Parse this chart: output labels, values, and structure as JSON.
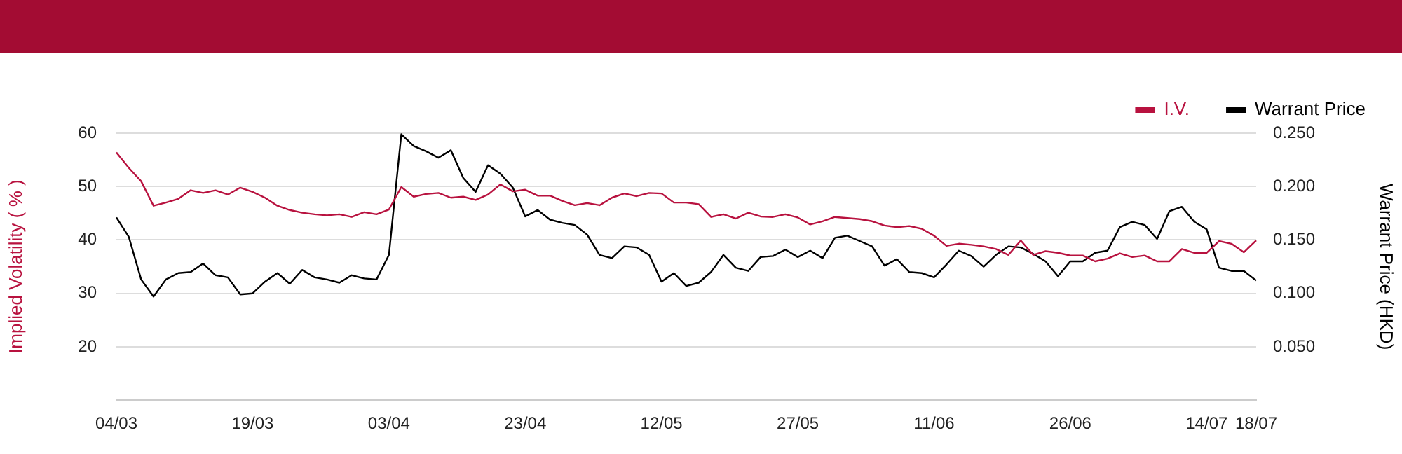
{
  "chart_data": {
    "type": "line",
    "categories": [
      "04/03",
      null,
      null,
      null,
      null,
      null,
      null,
      null,
      null,
      null,
      null,
      "19/03",
      null,
      null,
      null,
      null,
      null,
      null,
      null,
      null,
      null,
      null,
      "03/04",
      null,
      null,
      null,
      null,
      null,
      null,
      null,
      null,
      null,
      null,
      "23/04",
      null,
      null,
      null,
      null,
      null,
      null,
      null,
      null,
      null,
      null,
      "12/05",
      null,
      null,
      null,
      null,
      null,
      null,
      null,
      null,
      null,
      null,
      "27/05",
      null,
      null,
      null,
      null,
      null,
      null,
      null,
      null,
      null,
      null,
      "11/06",
      null,
      null,
      null,
      null,
      null,
      null,
      null,
      null,
      null,
      null,
      "26/06",
      null,
      null,
      null,
      null,
      null,
      null,
      null,
      null,
      null,
      null,
      "14/07",
      null,
      null,
      null,
      "18/07"
    ],
    "series": [
      {
        "name": "I.V.",
        "color": "#b8123f",
        "values": [
          56.4,
          53.5,
          51.0,
          46.4,
          47.0,
          47.7,
          49.3,
          48.8,
          49.3,
          48.5,
          49.8,
          49.0,
          47.9,
          46.4,
          45.6,
          45.1,
          44.8,
          44.6,
          44.8,
          44.3,
          45.2,
          44.8,
          45.7,
          49.9,
          48.1,
          48.6,
          48.8,
          47.9,
          48.1,
          47.5,
          48.5,
          50.4,
          49.1,
          49.4,
          48.3,
          48.3,
          47.3,
          46.5,
          46.9,
          46.5,
          47.9,
          48.7,
          48.2,
          48.8,
          48.7,
          47.0,
          47.0,
          46.7,
          44.3,
          44.8,
          44.0,
          45.1,
          44.4,
          44.3,
          44.8,
          44.2,
          42.9,
          43.5,
          44.3,
          44.1,
          43.9,
          43.5,
          42.7,
          42.4,
          42.6,
          42.1,
          40.8,
          38.9,
          39.3,
          39.1,
          38.8,
          38.3,
          37.2,
          39.9,
          37.2,
          37.9,
          37.6,
          37.1,
          37.1,
          36.0,
          36.5,
          37.5,
          36.8,
          37.1,
          36.0,
          36.0,
          38.3,
          37.6,
          37.6,
          39.8,
          39.3,
          37.7,
          39.9
        ]
      },
      {
        "name": "Warrant Price",
        "color": "#000000",
        "axis": "y2",
        "values": [
          0.171,
          0.153,
          0.113,
          0.097,
          0.113,
          0.119,
          0.12,
          0.128,
          0.117,
          0.115,
          0.099,
          0.1,
          0.111,
          0.119,
          0.109,
          0.122,
          0.115,
          0.113,
          0.11,
          0.117,
          0.114,
          0.113,
          0.136,
          0.249,
          0.238,
          0.233,
          0.227,
          0.234,
          0.208,
          0.195,
          0.22,
          0.212,
          0.199,
          0.172,
          0.178,
          0.169,
          0.166,
          0.164,
          0.155,
          0.136,
          0.133,
          0.144,
          0.143,
          0.136,
          0.111,
          0.119,
          0.107,
          0.11,
          0.12,
          0.136,
          0.124,
          0.121,
          0.134,
          0.135,
          0.141,
          0.134,
          0.14,
          0.133,
          0.152,
          0.154,
          0.149,
          0.144,
          0.126,
          0.132,
          0.12,
          0.119,
          0.115,
          0.127,
          0.14,
          0.135,
          0.125,
          0.136,
          0.144,
          0.143,
          0.137,
          0.13,
          0.116,
          0.13,
          0.13,
          0.138,
          0.14,
          0.162,
          0.167,
          0.164,
          0.151,
          0.177,
          0.181,
          0.167,
          0.16,
          0.124,
          0.121,
          0.121,
          0.112
        ]
      }
    ],
    "ylabel": "Implied Volatility ( % )",
    "y2label": "Warrant Price (HKD)",
    "ylim": [
      10,
      60
    ],
    "yticks": [
      20,
      30,
      40,
      50,
      60
    ],
    "y2lim": [
      0,
      0.25
    ],
    "y2ticks": [
      {
        "value": 0.05,
        "label": "0.050"
      },
      {
        "value": 0.1,
        "label": "0.100"
      },
      {
        "value": 0.15,
        "label": "0.150"
      },
      {
        "value": 0.2,
        "label": "0.200"
      },
      {
        "value": 0.25,
        "label": "0.250"
      }
    ],
    "grid": "y",
    "legend": "top right",
    "marker": "none"
  }
}
